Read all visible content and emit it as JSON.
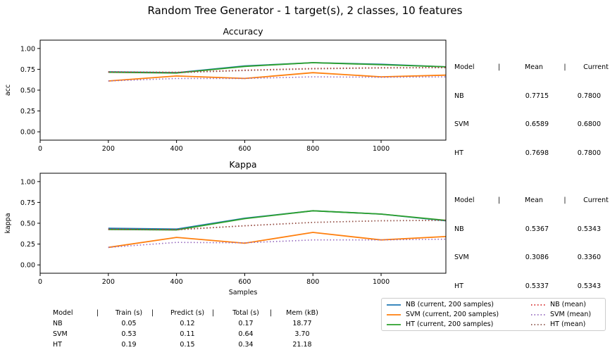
{
  "title": "Random Tree Generator - 1 target(s), 2 classes, 10 features",
  "chart_data": [
    {
      "type": "line",
      "title": "Accuracy",
      "xlabel": "",
      "ylabel": "acc",
      "xlim": [
        0,
        1190
      ],
      "ylim": [
        -0.1,
        1.1
      ],
      "xticks": [
        0,
        200,
        400,
        600,
        800,
        1000
      ],
      "yticks": [
        0.0,
        0.25,
        0.5,
        0.75,
        1.0
      ],
      "ytick_labels": [
        "0.00",
        "0.25",
        "0.50",
        "0.75",
        "1.00"
      ],
      "x": [
        200,
        400,
        600,
        800,
        1000,
        1190
      ],
      "series": [
        {
          "name": "NB  (current, 200 samples)",
          "style": "solid",
          "color": "#1f77b4",
          "values": [
            0.72,
            0.71,
            0.79,
            0.83,
            0.81,
            0.78
          ]
        },
        {
          "name": "SVM  (current, 200 samples)",
          "style": "solid",
          "color": "#ff7f0e",
          "values": [
            0.61,
            0.67,
            0.64,
            0.71,
            0.66,
            0.68
          ]
        },
        {
          "name": "HT  (current, 200 samples)",
          "style": "solid",
          "color": "#2ca02c",
          "values": [
            0.715,
            0.705,
            0.785,
            0.83,
            0.805,
            0.78
          ]
        },
        {
          "name": "NB (mean)",
          "style": "dotted",
          "color": "#d62728",
          "values": [
            0.72,
            0.715,
            0.74,
            0.76,
            0.77,
            0.7715
          ]
        },
        {
          "name": "SVM (mean)",
          "style": "dotted",
          "color": "#9467bd",
          "values": [
            0.61,
            0.64,
            0.64,
            0.66,
            0.655,
            0.6589
          ]
        },
        {
          "name": "HT (mean)",
          "style": "dotted",
          "color": "#8c564b",
          "values": [
            0.715,
            0.71,
            0.735,
            0.755,
            0.765,
            0.7698
          ]
        }
      ],
      "stats": {
        "header": [
          "Model",
          "|",
          "Mean",
          "|",
          "Current"
        ],
        "rows": [
          [
            "NB",
            "0.7715",
            "0.7800"
          ],
          [
            "SVM",
            "0.6589",
            "0.6800"
          ],
          [
            "HT",
            "0.7698",
            "0.7800"
          ]
        ]
      }
    },
    {
      "type": "line",
      "title": "Kappa",
      "xlabel": "Samples",
      "ylabel": "kappa",
      "xlim": [
        0,
        1190
      ],
      "ylim": [
        -0.1,
        1.1
      ],
      "xticks": [
        0,
        200,
        400,
        600,
        800,
        1000
      ],
      "yticks": [
        0.0,
        0.25,
        0.5,
        0.75,
        1.0
      ],
      "ytick_labels": [
        "0.00",
        "0.25",
        "0.50",
        "0.75",
        "1.00"
      ],
      "x": [
        200,
        400,
        600,
        800,
        1000,
        1190
      ],
      "series": [
        {
          "name": "NB  (current, 200 samples)",
          "style": "solid",
          "color": "#1f77b4",
          "values": [
            0.44,
            0.43,
            0.56,
            0.65,
            0.61,
            0.53
          ]
        },
        {
          "name": "SVM  (current, 200 samples)",
          "style": "solid",
          "color": "#ff7f0e",
          "values": [
            0.21,
            0.33,
            0.26,
            0.39,
            0.3,
            0.34
          ]
        },
        {
          "name": "HT  (current, 200 samples)",
          "style": "solid",
          "color": "#2ca02c",
          "values": [
            0.425,
            0.42,
            0.555,
            0.65,
            0.61,
            0.535
          ]
        },
        {
          "name": "NB (mean)",
          "style": "dotted",
          "color": "#d62728",
          "values": [
            0.43,
            0.425,
            0.47,
            0.51,
            0.53,
            0.5367
          ]
        },
        {
          "name": "SVM (mean)",
          "style": "dotted",
          "color": "#9467bd",
          "values": [
            0.21,
            0.27,
            0.265,
            0.3,
            0.3,
            0.3086
          ]
        },
        {
          "name": "HT (mean)",
          "style": "dotted",
          "color": "#8c564b",
          "values": [
            0.425,
            0.42,
            0.47,
            0.51,
            0.53,
            0.5337
          ]
        }
      ],
      "stats": {
        "header": [
          "Model",
          "|",
          "Mean",
          "|",
          "Current"
        ],
        "rows": [
          [
            "NB",
            "0.5367",
            "0.5343"
          ],
          [
            "SVM",
            "0.3086",
            "0.3360"
          ],
          [
            "HT",
            "0.5337",
            "0.5343"
          ]
        ]
      }
    }
  ],
  "timing_table": {
    "header": [
      "Model",
      "|",
      "Train (s)",
      "|",
      "Predict (s)",
      "|",
      "Total (s)",
      "|",
      "Mem (kB)"
    ],
    "rows": [
      [
        "NB",
        "0.05",
        "0.12",
        "0.17",
        "18.77"
      ],
      [
        "SVM",
        "0.53",
        "0.11",
        "0.64",
        "3.70"
      ],
      [
        "HT",
        "0.19",
        "0.15",
        "0.34",
        "21.18"
      ]
    ]
  },
  "legend": {
    "placement": "bottom-right",
    "items": [
      {
        "label": "NB  (current, 200 samples)",
        "color": "#1f77b4",
        "style": "solid"
      },
      {
        "label": "NB (mean)",
        "color": "#d62728",
        "style": "dotted"
      },
      {
        "label": "SVM  (current, 200 samples)",
        "color": "#ff7f0e",
        "style": "solid"
      },
      {
        "label": "SVM (mean)",
        "color": "#9467bd",
        "style": "dotted"
      },
      {
        "label": "HT  (current, 200 samples)",
        "color": "#2ca02c",
        "style": "solid"
      },
      {
        "label": "HT (mean)",
        "color": "#8c564b",
        "style": "dotted"
      }
    ]
  }
}
